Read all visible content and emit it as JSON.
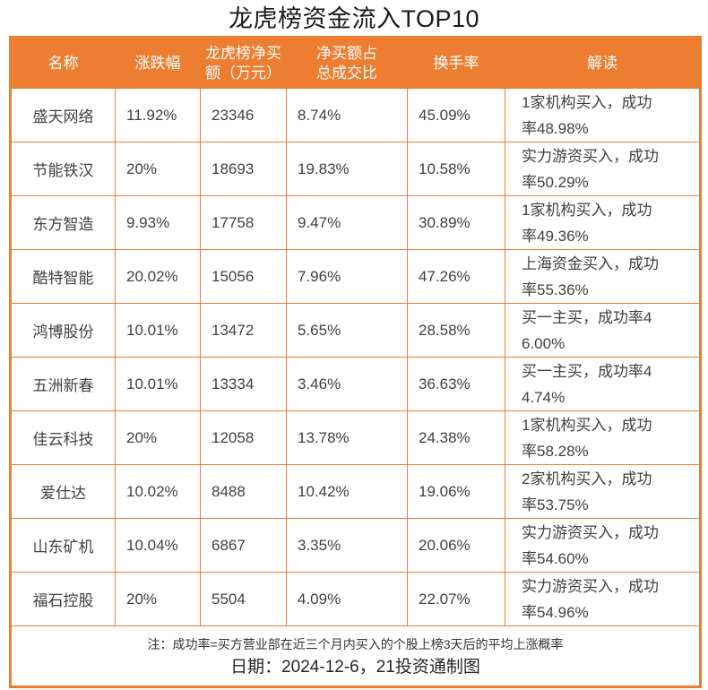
{
  "title": "龙虎榜资金流入TOP10",
  "colors": {
    "accent": "#ED7D31",
    "header_text": "#FFFFFF",
    "body_text": "#404040"
  },
  "chart_data": {
    "type": "table",
    "title": "龙虎榜资金流入TOP10",
    "columns": [
      "名称",
      "涨跌幅",
      "龙虎榜净买\n额（万元）",
      "净买额占\n总成交比",
      "换手率",
      "解读"
    ],
    "rows": [
      {
        "name": "盛天网络",
        "change": "11.92%",
        "net_buy": "23346",
        "ratio": "8.74%",
        "turnover": "45.09%",
        "note": "1家机构买入，成功率48.98%"
      },
      {
        "name": "节能铁汉",
        "change": "20%",
        "net_buy": "18693",
        "ratio": "19.83%",
        "turnover": "10.58%",
        "note": "实力游资买入，成功率50.29%"
      },
      {
        "name": "东方智造",
        "change": "9.93%",
        "net_buy": "17758",
        "ratio": "9.47%",
        "turnover": "30.89%",
        "note": "1家机构买入，成功率49.36%"
      },
      {
        "name": "酷特智能",
        "change": "20.02%",
        "net_buy": "15056",
        "ratio": "7.96%",
        "turnover": "47.26%",
        "note": "上海资金买入，成功率55.36%"
      },
      {
        "name": "鸿博股份",
        "change": "10.01%",
        "net_buy": "13472",
        "ratio": "5.65%",
        "turnover": "28.58%",
        "note": "买一主买，成功率46.00%"
      },
      {
        "name": "五洲新春",
        "change": "10.01%",
        "net_buy": "13334",
        "ratio": "3.46%",
        "turnover": "36.63%",
        "note": "买一主买，成功率44.74%"
      },
      {
        "name": "佳云科技",
        "change": "20%",
        "net_buy": "12058",
        "ratio": "13.78%",
        "turnover": "24.38%",
        "note": "1家机构买入，成功率58.28%"
      },
      {
        "name": "爱仕达",
        "change": "10.02%",
        "net_buy": "8488",
        "ratio": "10.42%",
        "turnover": "19.06%",
        "note": "2家机构买入，成功率53.75%"
      },
      {
        "name": "山东矿机",
        "change": "10.04%",
        "net_buy": "6867",
        "ratio": "3.35%",
        "turnover": "20.06%",
        "note": "实力游资买入，成功率54.60%"
      },
      {
        "name": "福石控股",
        "change": "20%",
        "net_buy": "5504",
        "ratio": "4.09%",
        "turnover": "22.07%",
        "note": "实力游资买入，成功率54.96%"
      }
    ]
  },
  "footer": {
    "note": "注：成功率=买方营业部在近三个月内买入的个股上榜3天后的平均上涨概率",
    "date_line": "日期：2024-12-6，21投资通制图"
  }
}
